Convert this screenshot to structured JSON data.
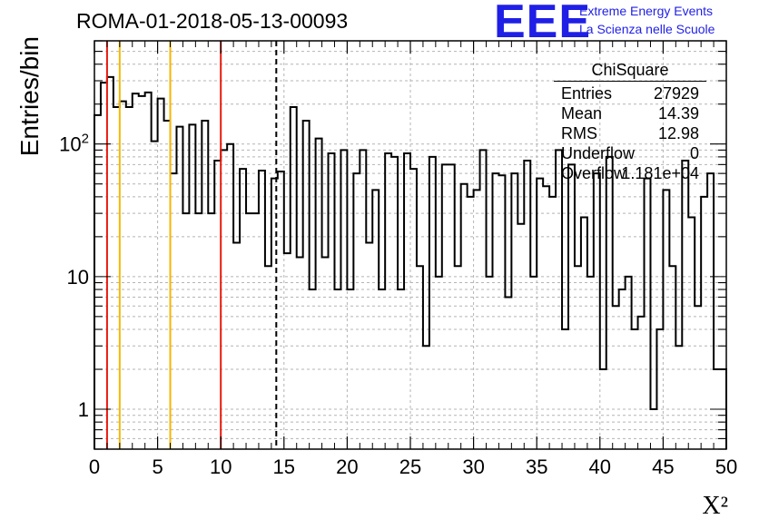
{
  "chart_data": {
    "type": "histogram",
    "title": "ROMA-01-2018-05-13-00093",
    "xlabel": "X²",
    "ylabel": "Entries/bin",
    "xlim": [
      0,
      50
    ],
    "ylim": [
      0.5,
      600
    ],
    "y_scale": "log",
    "grid": true,
    "x_ticks": [
      0,
      5,
      10,
      15,
      20,
      25,
      30,
      35,
      40,
      45,
      50
    ],
    "x_tick_labels": [
      "0",
      "5",
      "10",
      "15",
      "20",
      "25",
      "30",
      "35",
      "40",
      "45",
      "50"
    ],
    "y_ticks": [
      1,
      10,
      100
    ],
    "y_tick_labels": [
      "1",
      "10",
      "10²"
    ],
    "bin_width": 0.5,
    "bin_start": 0,
    "values": [
      165,
      290,
      320,
      190,
      210,
      190,
      240,
      230,
      245,
      105,
      220,
      150,
      60,
      135,
      30,
      140,
      30,
      150,
      30,
      75,
      90,
      100,
      18,
      65,
      30,
      30,
      63,
      12,
      55,
      62,
      15,
      190,
      14,
      150,
      8,
      110,
      14,
      85,
      8,
      90,
      8,
      60,
      90,
      18,
      45,
      8,
      85,
      80,
      8,
      85,
      65,
      12,
      3,
      80,
      10,
      70,
      70,
      12,
      50,
      40,
      45,
      90,
      10,
      60,
      58,
      7,
      60,
      25,
      75,
      10,
      55,
      48,
      40,
      90,
      4,
      70,
      12,
      28,
      10,
      60,
      2,
      80,
      6,
      8,
      10,
      4,
      5,
      55,
      1,
      4,
      45,
      12,
      3,
      75,
      28,
      6,
      40,
      60,
      2,
      2
    ],
    "vertical_lines": [
      {
        "x": 1.0,
        "color": "#e8190f",
        "style": "solid"
      },
      {
        "x": 2.0,
        "color": "#f5b800",
        "style": "solid"
      },
      {
        "x": 6.0,
        "color": "#f5b800",
        "style": "solid"
      },
      {
        "x": 10.0,
        "color": "#e8190f",
        "style": "solid"
      },
      {
        "x": 14.39,
        "color": "#000000",
        "style": "dashed"
      }
    ],
    "stats_box": {
      "title": "ChiSquare",
      "rows": [
        {
          "label": "Entries",
          "value": "27929"
        },
        {
          "label": "Mean",
          "value": "14.39"
        },
        {
          "label": "RMS",
          "value": "12.98"
        },
        {
          "label": "Underflow",
          "value": "0"
        },
        {
          "label": "Overflow",
          "value": "1.181e+04"
        }
      ]
    }
  },
  "logo": {
    "mark": "EEE",
    "line1": "Extreme Energy Events",
    "line2": "La Scienza nelle Scuole"
  },
  "colors": {
    "logo_blue": "#1f1fe6",
    "grid": "#b4b4b4",
    "red_line": "#e8190f",
    "yellow_line": "#f5b800"
  }
}
